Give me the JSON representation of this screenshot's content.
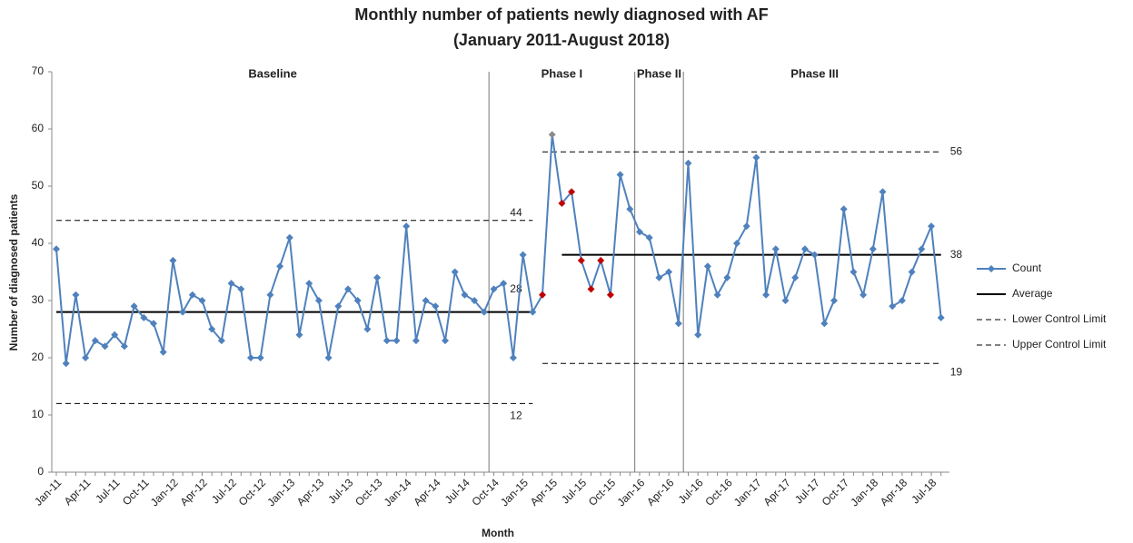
{
  "chart_data": {
    "type": "line",
    "title": "Monthly number of patients newly diagnosed with AF",
    "subtitle": "(January 2011-August 2018)",
    "x_label": "Month",
    "y_label": "Number of diagnosed patients",
    "ylim": [
      0,
      70
    ],
    "yticks": [
      0,
      10,
      20,
      30,
      40,
      50,
      60,
      70
    ],
    "categories": [
      "Jan-11",
      null,
      null,
      "Apr-11",
      null,
      null,
      "Jul-11",
      null,
      null,
      "Oct-11",
      null,
      null,
      "Jan-12",
      null,
      null,
      "Apr-12",
      null,
      null,
      "Jul-12",
      null,
      null,
      "Oct-12",
      null,
      null,
      "Jan-13",
      null,
      null,
      "Apr-13",
      null,
      null,
      "Jul-13",
      null,
      null,
      "Oct-13",
      null,
      null,
      "Jan-14",
      null,
      null,
      "Apr-14",
      null,
      null,
      "Jul-14",
      null,
      null,
      "Oct-14",
      null,
      null,
      "Jan-15",
      null,
      null,
      "Apr-15",
      null,
      null,
      "Jul-15",
      null,
      null,
      "Oct-15",
      null,
      null,
      "Jan-16",
      null,
      null,
      "Apr-16",
      null,
      null,
      "Jul-16",
      null,
      null,
      "Oct-16",
      null,
      null,
      "Jan-17",
      null,
      null,
      "Apr-17",
      null,
      null,
      "Jul-17",
      null,
      null,
      "Oct-17",
      null,
      null,
      "Jan-18",
      null,
      null,
      "Apr-18",
      null,
      null,
      "Jul-18",
      null
    ],
    "series": [
      {
        "name": "Count",
        "color": "#4f81bd",
        "values": [
          39,
          19,
          31,
          20,
          23,
          22,
          24,
          22,
          29,
          27,
          26,
          21,
          37,
          28,
          31,
          30,
          25,
          23,
          33,
          32,
          20,
          20,
          31,
          36,
          41,
          24,
          33,
          30,
          20,
          29,
          32,
          30,
          25,
          34,
          23,
          23,
          43,
          23,
          30,
          29,
          23,
          35,
          31,
          30,
          28,
          32,
          33,
          20,
          38,
          28,
          31,
          59,
          47,
          49,
          37,
          32,
          37,
          31,
          52,
          46,
          42,
          41,
          34,
          35,
          26,
          54,
          24,
          36,
          31,
          34,
          40,
          43,
          55,
          31,
          39,
          30,
          34,
          39,
          38,
          26,
          30,
          46,
          35,
          31,
          39,
          49,
          29,
          30,
          35,
          39,
          43,
          27
        ]
      },
      {
        "name": "Average",
        "color": "#000000",
        "dash": false,
        "segments": [
          {
            "start": 0,
            "end": 49,
            "value": 28
          },
          {
            "start": 52,
            "end": 91,
            "value": 38
          }
        ]
      },
      {
        "name": "Lower Control Limit",
        "color": "#000000",
        "dash": true,
        "segments": [
          {
            "start": 0,
            "end": 49,
            "value": 12
          },
          {
            "start": 50,
            "end": 91,
            "value": 19
          }
        ]
      },
      {
        "name": "Upper Control Limit",
        "color": "#000000",
        "dash": true,
        "segments": [
          {
            "start": 0,
            "end": 49,
            "value": 44
          },
          {
            "start": 50,
            "end": 91,
            "value": 56
          }
        ]
      }
    ],
    "highlights": [
      {
        "color": "#c00000",
        "indices": [
          50,
          52,
          53,
          54,
          55,
          56,
          57
        ]
      },
      {
        "color": "#8c8c8c",
        "indices": [
          51
        ]
      }
    ],
    "phases": [
      {
        "label": "Baseline",
        "start": 0
      },
      {
        "label": "Phase I",
        "start": 45
      },
      {
        "label": "Phase II",
        "start": 60
      },
      {
        "label": "Phase III",
        "start": 65
      }
    ]
  }
}
